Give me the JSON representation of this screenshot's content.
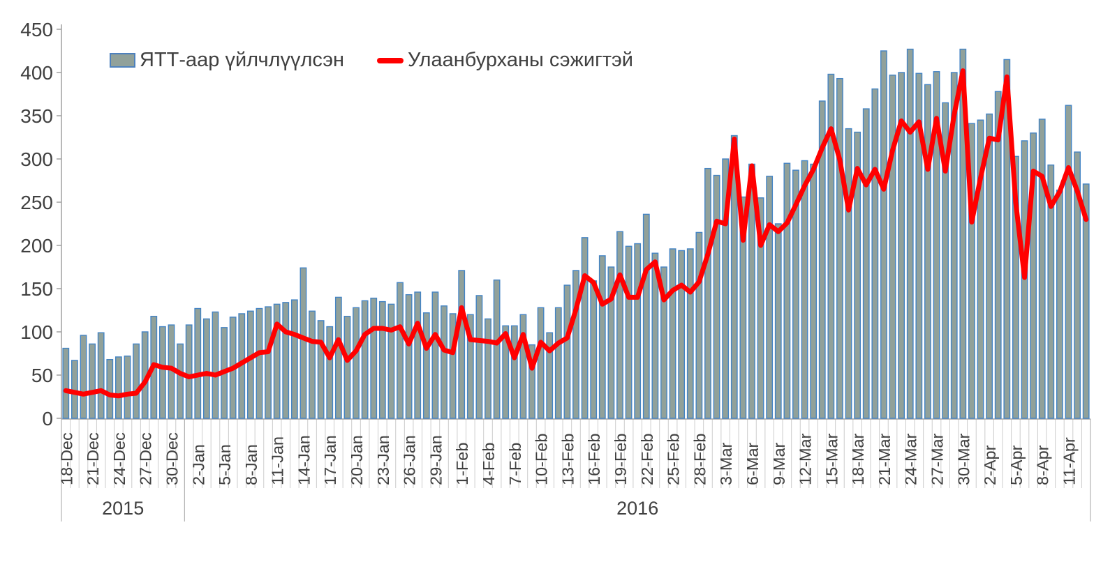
{
  "legend": {
    "bars_label": "ЯТТ-аар үйлчлүүлсэн",
    "line_label": "Улаанбурханы сэжигтэй"
  },
  "colors": {
    "bar_fill": "#91a19a",
    "bar_border": "#4484c4",
    "line": "#ff0000",
    "text": "#404040",
    "axis": "#a0a0a0",
    "day_grid": "#cccccc",
    "band_separator": "#b3b3b3"
  },
  "chart_data": {
    "type": "bar",
    "title": "",
    "xlabel": "",
    "ylabel": "",
    "ylim": [
      0,
      450
    ],
    "y_ticks": [
      0,
      50,
      100,
      150,
      200,
      250,
      300,
      350,
      400,
      450
    ],
    "grid": false,
    "legend_position": "top-left",
    "x_label_every": 3,
    "year_bands": [
      {
        "label": "2015",
        "from_index": 0,
        "to_index": 13
      },
      {
        "label": "2016",
        "from_index": 14,
        "to_index": 116
      }
    ],
    "categories": [
      "18-Dec",
      "19-Dec",
      "20-Dec",
      "21-Dec",
      "22-Dec",
      "23-Dec",
      "24-Dec",
      "25-Dec",
      "26-Dec",
      "27-Dec",
      "28-Dec",
      "29-Dec",
      "30-Dec",
      "31-Dec",
      "1-Jan",
      "2-Jan",
      "3-Jan",
      "4-Jan",
      "5-Jan",
      "6-Jan",
      "7-Jan",
      "8-Jan",
      "9-Jan",
      "10-Jan",
      "11-Jan",
      "12-Jan",
      "13-Jan",
      "14-Jan",
      "15-Jan",
      "16-Jan",
      "17-Jan",
      "18-Jan",
      "19-Jan",
      "20-Jan",
      "21-Jan",
      "22-Jan",
      "23-Jan",
      "24-Jan",
      "25-Jan",
      "26-Jan",
      "27-Jan",
      "28-Jan",
      "29-Jan",
      "30-Jan",
      "31-Jan",
      "1-Feb",
      "2-Feb",
      "3-Feb",
      "4-Feb",
      "5-Feb",
      "6-Feb",
      "7-Feb",
      "8-Feb",
      "9-Feb",
      "10-Feb",
      "11-Feb",
      "12-Feb",
      "13-Feb",
      "14-Feb",
      "15-Feb",
      "16-Feb",
      "17-Feb",
      "18-Feb",
      "19-Feb",
      "20-Feb",
      "21-Feb",
      "22-Feb",
      "23-Feb",
      "24-Feb",
      "25-Feb",
      "26-Feb",
      "27-Feb",
      "28-Feb",
      "1-Mar",
      "2-Mar",
      "3-Mar",
      "4-Mar",
      "5-Mar",
      "6-Mar",
      "7-Mar",
      "8-Mar",
      "9-Mar",
      "10-Mar",
      "11-Mar",
      "12-Mar",
      "13-Mar",
      "14-Mar",
      "15-Mar",
      "16-Mar",
      "17-Mar",
      "18-Mar",
      "19-Mar",
      "20-Mar",
      "21-Mar",
      "22-Mar",
      "23-Mar",
      "24-Mar",
      "25-Mar",
      "26-Mar",
      "27-Mar",
      "28-Mar",
      "29-Mar",
      "30-Mar",
      "31-Mar",
      "1-Apr",
      "2-Apr",
      "3-Apr",
      "4-Apr",
      "5-Apr",
      "6-Apr",
      "7-Apr",
      "8-Apr",
      "9-Apr",
      "10-Apr",
      "11-Apr",
      "12-Apr",
      "13-Apr"
    ],
    "series": [
      {
        "name": "ЯТТ-аар үйлчлүүлсэн",
        "type": "bar",
        "color": "#91a19a",
        "values": [
          81,
          67,
          96,
          86,
          99,
          68,
          71,
          72,
          86,
          100,
          118,
          106,
          108,
          86,
          108,
          127,
          115,
          123,
          105,
          117,
          121,
          124,
          127,
          129,
          132,
          134,
          137,
          174,
          124,
          113,
          106,
          140,
          118,
          128,
          136,
          139,
          135,
          132,
          157,
          143,
          146,
          122,
          146,
          130,
          121,
          171,
          120,
          142,
          115,
          160,
          107,
          107,
          120,
          85,
          128,
          99,
          128,
          154,
          171,
          209,
          159,
          188,
          175,
          216,
          199,
          202,
          236,
          191,
          175,
          196,
          194,
          196,
          215,
          289,
          281,
          300,
          327,
          256,
          294,
          255,
          280,
          225,
          295,
          287,
          298,
          294,
          367,
          398,
          393,
          335,
          331,
          358,
          381,
          425,
          397,
          400,
          427,
          399,
          386,
          401,
          365,
          400,
          427,
          341,
          345,
          352,
          378,
          415,
          303,
          321,
          330,
          346,
          293,
          264,
          362,
          308,
          271
        ]
      },
      {
        "name": "Улаанбурханы сэжигтэй",
        "type": "line",
        "color": "#ff0000",
        "values": [
          32,
          30,
          28,
          30,
          32,
          27,
          26,
          28,
          29,
          42,
          62,
          59,
          58,
          52,
          48,
          50,
          52,
          50,
          54,
          58,
          64,
          70,
          76,
          77,
          109,
          100,
          97,
          93,
          89,
          88,
          70,
          91,
          67,
          78,
          97,
          104,
          104,
          102,
          106,
          86,
          110,
          81,
          97,
          79,
          76,
          128,
          91,
          90,
          89,
          87,
          98,
          70,
          97,
          58,
          88,
          78,
          87,
          93,
          126,
          165,
          157,
          132,
          138,
          166,
          140,
          140,
          172,
          181,
          137,
          148,
          154,
          146,
          158,
          190,
          228,
          225,
          323,
          206,
          292,
          200,
          224,
          216,
          226,
          247,
          269,
          288,
          313,
          335,
          299,
          241,
          289,
          270,
          288,
          265,
          310,
          344,
          331,
          343,
          288,
          347,
          286,
          351,
          402,
          227,
          278,
          324,
          322,
          395,
          250,
          163,
          286,
          280,
          245,
          262,
          290,
          263,
          230
        ]
      }
    ]
  }
}
